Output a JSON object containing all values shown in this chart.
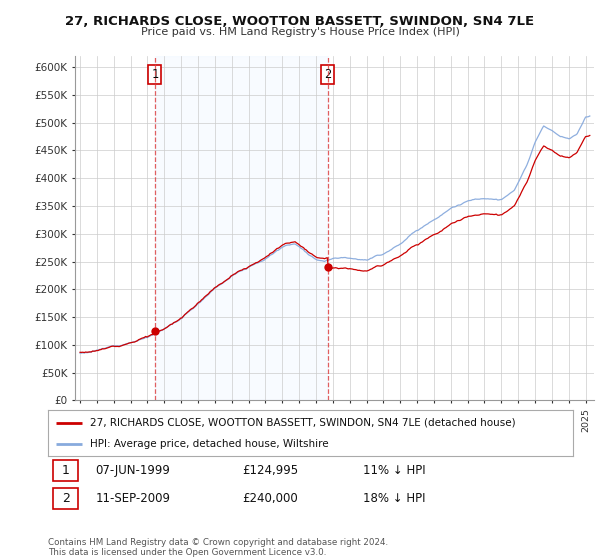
{
  "title_line1": "27, RICHARDS CLOSE, WOOTTON BASSETT, SWINDON, SN4 7LE",
  "title_line2": "Price paid vs. HM Land Registry's House Price Index (HPI)",
  "ylim": [
    0,
    620000
  ],
  "yticks": [
    0,
    50000,
    100000,
    150000,
    200000,
    250000,
    300000,
    350000,
    400000,
    450000,
    500000,
    550000,
    600000
  ],
  "ytick_labels": [
    "£0",
    "£50K",
    "£100K",
    "£150K",
    "£200K",
    "£250K",
    "£300K",
    "£350K",
    "£400K",
    "£450K",
    "£500K",
    "£550K",
    "£600K"
  ],
  "sale1_date": "07-JUN-1999",
  "sale1_price": 124995,
  "sale1_price_str": "£124,995",
  "sale1_pct": "11% ↓ HPI",
  "sale1_x": 1999.44,
  "sale2_date": "11-SEP-2009",
  "sale2_price": 240000,
  "sale2_price_str": "£240,000",
  "sale2_pct": "18% ↓ HPI",
  "sale2_x": 2009.69,
  "legend_line1": "27, RICHARDS CLOSE, WOOTTON BASSETT, SWINDON, SN4 7LE (detached house)",
  "legend_line2": "HPI: Average price, detached house, Wiltshire",
  "footer": "Contains HM Land Registry data © Crown copyright and database right 2024.\nThis data is licensed under the Open Government Licence v3.0.",
  "red_color": "#cc0000",
  "blue_color": "#88aadd",
  "shade_color": "#ddeeff",
  "dashed_color": "#dd4444",
  "background_color": "#ffffff",
  "grid_color": "#cccccc"
}
